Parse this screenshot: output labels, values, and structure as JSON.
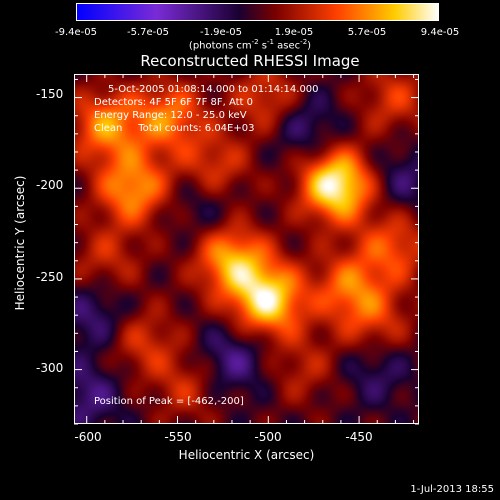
{
  "chart_data": {
    "type": "heatmap",
    "title": "Reconstructed RHESSI Image",
    "xlabel": "Heliocentric X (arcsec)",
    "ylabel": "Heliocentric Y (arcsec)",
    "xlim": [
      -607,
      -417
    ],
    "ylim": [
      -330,
      -137
    ],
    "xticks": [
      -600,
      -550,
      -500,
      -450
    ],
    "yticks": [
      -150,
      -200,
      -250,
      -300
    ],
    "colorbar": {
      "ticks": [
        "-9.4e-05",
        "-5.7e-05",
        "-1.9e-05",
        "1.9e-05",
        "5.7e-05",
        "9.4e-05"
      ],
      "label": "(photons cm-2 s-1 asec-2)",
      "range": [
        -9.4e-05,
        9.4e-05
      ]
    },
    "annotations": [
      "5-Oct-2005 01:08:14.000 to 01:14:14.000",
      "Detectors: 4F 5F 6F 7F 8F, Att 0",
      "Energy Range: 12.0 - 25.0 keV",
      "Clean     Total counts: 6.04E+03"
    ],
    "peak_label": "Position of Peak = [-462,-200]",
    "peak": [
      -462,
      -200
    ],
    "blobs": [
      {
        "x": -462,
        "y": -198,
        "v": 1.0
      },
      {
        "x": -500,
        "y": -262,
        "v": 0.88
      },
      {
        "x": -520,
        "y": -240,
        "v": 0.7
      },
      {
        "x": -575,
        "y": -200,
        "v": 0.65
      },
      {
        "x": -590,
        "y": -165,
        "v": 0.6
      },
      {
        "x": -555,
        "y": -160,
        "v": 0.55
      },
      {
        "x": -530,
        "y": -190,
        "v": 0.45
      },
      {
        "x": -455,
        "y": -255,
        "v": 0.5
      },
      {
        "x": -430,
        "y": -232,
        "v": 0.45
      },
      {
        "x": -440,
        "y": -275,
        "v": 0.35
      },
      {
        "x": -570,
        "y": -285,
        "v": 0.35
      },
      {
        "x": -545,
        "y": -310,
        "v": 0.3
      },
      {
        "x": -500,
        "y": -150,
        "v": 0.4
      },
      {
        "x": -430,
        "y": -150,
        "v": 0.35
      },
      {
        "x": -590,
        "y": -240,
        "v": 0.3
      },
      {
        "x": -480,
        "y": -300,
        "v": 0.25
      },
      {
        "x": -600,
        "y": -315,
        "v": -0.3
      },
      {
        "x": -480,
        "y": -165,
        "v": -0.3
      },
      {
        "x": -425,
        "y": -195,
        "v": -0.25
      },
      {
        "x": -595,
        "y": -270,
        "v": -0.3
      },
      {
        "x": -535,
        "y": -205,
        "v": -0.28
      },
      {
        "x": -520,
        "y": -295,
        "v": -0.35
      },
      {
        "x": -440,
        "y": -300,
        "v": -0.25
      }
    ]
  },
  "footer": "1-Jul-2013 18:55"
}
